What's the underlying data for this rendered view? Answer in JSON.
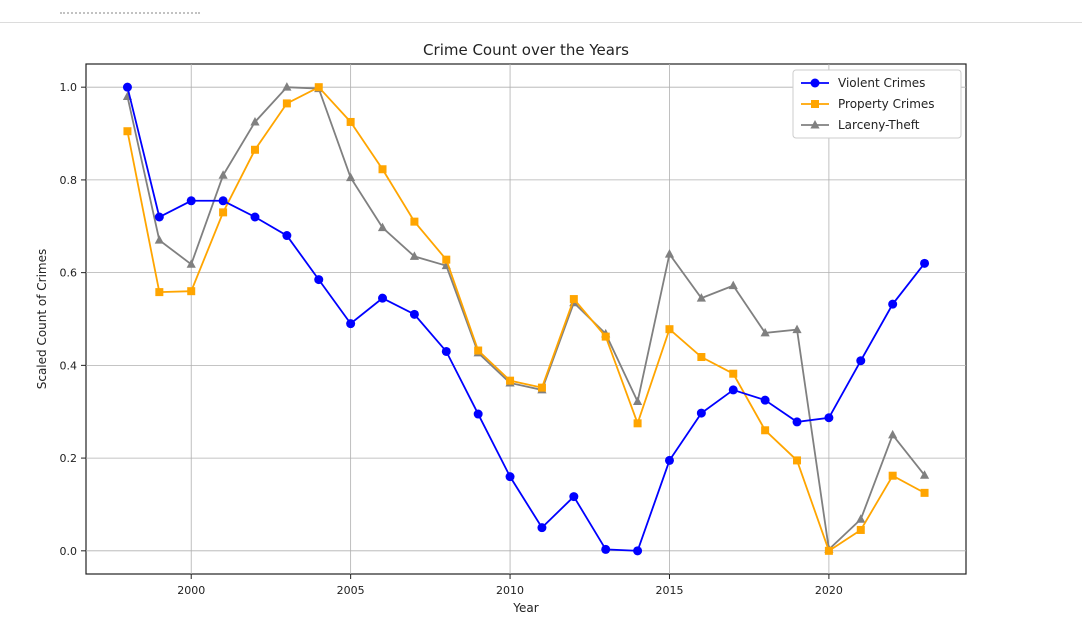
{
  "chart_data": {
    "type": "line",
    "title": "Crime Count over the Years",
    "xlabel": "Year",
    "ylabel": "Scaled Count of Crimes",
    "xlim": [
      1996.7,
      2024.3
    ],
    "ylim": [
      -0.05,
      1.05
    ],
    "xticks": [
      2000,
      2005,
      2010,
      2015,
      2020
    ],
    "yticks": [
      0.0,
      0.2,
      0.4,
      0.6,
      0.8,
      1.0
    ],
    "ytick_labels": [
      "0.0",
      "0.2",
      "0.4",
      "0.6",
      "0.8",
      "1.0"
    ],
    "grid": true,
    "legend_position": "top-right",
    "x": [
      1998,
      1999,
      2000,
      2001,
      2002,
      2003,
      2004,
      2005,
      2006,
      2007,
      2008,
      2009,
      2010,
      2011,
      2012,
      2013,
      2014,
      2015,
      2016,
      2017,
      2018,
      2019,
      2020,
      2021,
      2022,
      2023
    ],
    "series": [
      {
        "name": "Violent Crimes",
        "color": "#0000ff",
        "marker": "circle",
        "values": [
          1.0,
          0.72,
          0.755,
          0.755,
          0.72,
          0.68,
          0.585,
          0.49,
          0.545,
          0.51,
          0.43,
          0.295,
          0.16,
          0.05,
          0.117,
          0.003,
          0.0,
          0.195,
          0.297,
          0.347,
          0.325,
          0.278,
          0.287,
          0.41,
          0.532,
          0.62
        ]
      },
      {
        "name": "Property Crimes",
        "color": "#ffa500",
        "marker": "square",
        "values": [
          0.905,
          0.558,
          0.56,
          0.73,
          0.865,
          0.965,
          1.0,
          0.925,
          0.823,
          0.71,
          0.628,
          0.432,
          0.367,
          0.352,
          0.543,
          0.462,
          0.275,
          0.478,
          0.418,
          0.382,
          0.26,
          0.195,
          0.0,
          0.045,
          0.162,
          0.125
        ]
      },
      {
        "name": "Larceny-Theft",
        "color": "#808080",
        "marker": "triangle",
        "values": [
          0.98,
          0.67,
          0.618,
          0.81,
          0.925,
          1.0,
          0.997,
          0.805,
          0.697,
          0.635,
          0.615,
          0.427,
          0.362,
          0.347,
          0.535,
          0.468,
          0.322,
          0.64,
          0.545,
          0.572,
          0.47,
          0.477,
          0.003,
          0.068,
          0.25,
          0.163
        ]
      }
    ]
  }
}
